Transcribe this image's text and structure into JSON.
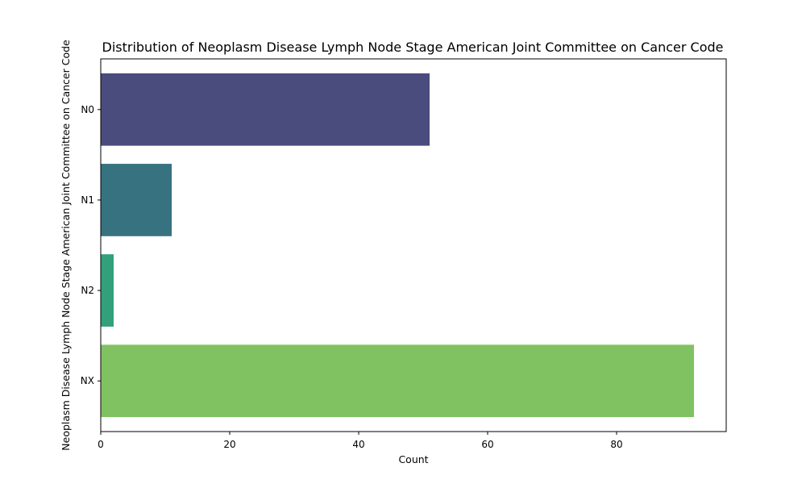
{
  "chart_data": {
    "type": "bar",
    "orientation": "horizontal",
    "title": "Distribution of Neoplasm Disease Lymph Node Stage American Joint Committee on Cancer Code",
    "xlabel": "Count",
    "ylabel": "Neoplasm Disease Lymph Node Stage American Joint Committee on Cancer Code",
    "categories": [
      "N0",
      "N1",
      "N2",
      "NX"
    ],
    "values": [
      51,
      11,
      2,
      92
    ],
    "colors": [
      "#4a4c7e",
      "#36727f",
      "#32a07b",
      "#80c262"
    ],
    "xlim": [
      0,
      97
    ],
    "xticks": [
      0,
      20,
      40,
      60,
      80
    ],
    "grid": false,
    "legend": "none"
  }
}
